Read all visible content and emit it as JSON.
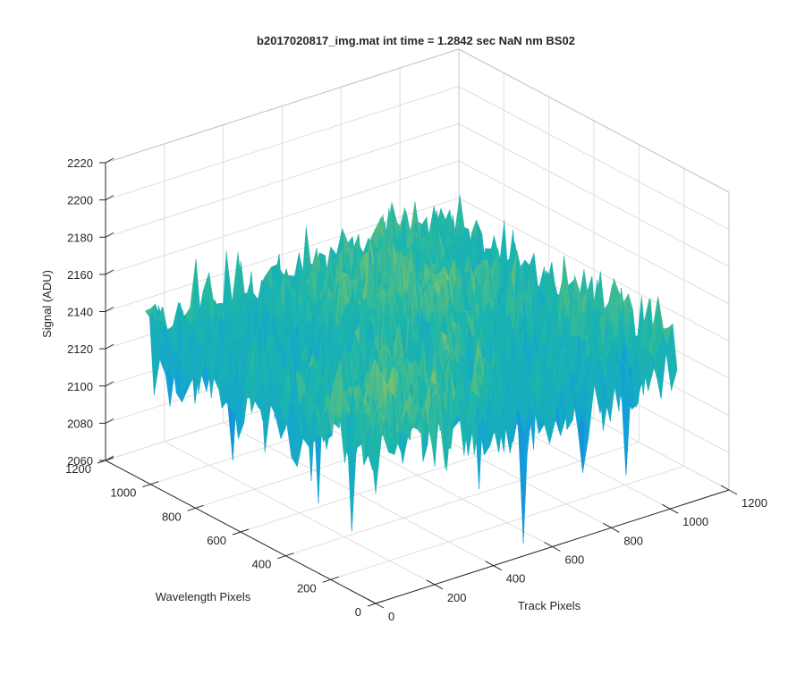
{
  "chart_data": {
    "type": "surface",
    "title": "b2017020817_img.mat int time = 1.2842 sec  NaN nm BS02",
    "xlabel": "Track Pixels",
    "ylabel": "Wavelength Pixels",
    "zlabel": "Signal (ADU)",
    "xlim": [
      0,
      1200
    ],
    "ylim": [
      0,
      1200
    ],
    "zlim": [
      2060,
      2220
    ],
    "x_ticks": [
      "0",
      "200",
      "400",
      "600",
      "800",
      "1000",
      "1200"
    ],
    "y_ticks": [
      "0",
      "200",
      "400",
      "600",
      "800",
      "1000",
      "1200"
    ],
    "z_ticks": [
      "2060",
      "2080",
      "2100",
      "2120",
      "2140",
      "2160",
      "2180",
      "2200",
      "2220"
    ],
    "grid": true,
    "surface": {
      "x_extent": [
        0,
        1024
      ],
      "y_extent": [
        0,
        1024
      ],
      "mean_signal": 2140,
      "typical_range": [
        2090,
        2200
      ],
      "min_spike": 2063,
      "colormap": "parula"
    }
  }
}
